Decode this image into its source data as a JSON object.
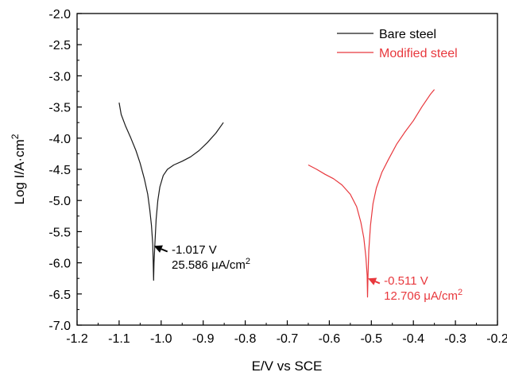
{
  "chart_data": {
    "type": "line",
    "xlabel": "E/V vs SCE",
    "ylabel_main": "Log I/A·cm",
    "ylabel_sup": "2",
    "xlim": [
      -1.2,
      -0.2
    ],
    "ylim": [
      -7.0,
      -2.0
    ],
    "x_ticks": [
      -1.2,
      -1.1,
      -1.0,
      -0.9,
      -0.8,
      -0.7,
      -0.6,
      -0.5,
      -0.4,
      -0.3,
      -0.2
    ],
    "x_tick_labels": [
      "-1.2",
      "-1.1",
      "-1.0",
      "-0.9",
      "-0.8",
      "-0.7",
      "-0.6",
      "-0.5",
      "-0.4",
      "-0.3",
      "-0.2"
    ],
    "y_ticks": [
      -2.0,
      -2.5,
      -3.0,
      -3.5,
      -4.0,
      -4.5,
      -5.0,
      -5.5,
      -6.0,
      -6.5,
      -7.0
    ],
    "y_tick_labels": [
      "-2.0",
      "-2.5",
      "-3.0",
      "-3.5",
      "-4.0",
      "-4.5",
      "-5.0",
      "-5.5",
      "-6.0",
      "-6.5",
      "-7.0"
    ],
    "grid": false,
    "legend_position": "top-right",
    "series": [
      {
        "name": "Bare steel",
        "color": "#1a1a1a",
        "points": [
          [
            -1.1,
            -3.43
          ],
          [
            -1.095,
            -3.62
          ],
          [
            -1.085,
            -3.8
          ],
          [
            -1.072,
            -4.0
          ],
          [
            -1.06,
            -4.2
          ],
          [
            -1.05,
            -4.4
          ],
          [
            -1.04,
            -4.65
          ],
          [
            -1.032,
            -4.9
          ],
          [
            -1.027,
            -5.15
          ],
          [
            -1.023,
            -5.4
          ],
          [
            -1.02,
            -5.7
          ],
          [
            -1.019,
            -5.95
          ],
          [
            -1.018,
            -6.28
          ],
          [
            -1.017,
            -6.0
          ],
          [
            -1.015,
            -5.7
          ],
          [
            -1.012,
            -5.3
          ],
          [
            -1.008,
            -5.0
          ],
          [
            -1.003,
            -4.78
          ],
          [
            -0.995,
            -4.6
          ],
          [
            -0.985,
            -4.5
          ],
          [
            -0.97,
            -4.43
          ],
          [
            -0.95,
            -4.37
          ],
          [
            -0.93,
            -4.3
          ],
          [
            -0.91,
            -4.2
          ],
          [
            -0.89,
            -4.07
          ],
          [
            -0.87,
            -3.92
          ],
          [
            -0.852,
            -3.75
          ]
        ]
      },
      {
        "name": "Modified steel",
        "color": "#e8383d",
        "points": [
          [
            -0.65,
            -4.43
          ],
          [
            -0.63,
            -4.5
          ],
          [
            -0.61,
            -4.58
          ],
          [
            -0.59,
            -4.65
          ],
          [
            -0.57,
            -4.75
          ],
          [
            -0.55,
            -4.9
          ],
          [
            -0.535,
            -5.1
          ],
          [
            -0.525,
            -5.35
          ],
          [
            -0.518,
            -5.6
          ],
          [
            -0.513,
            -5.9
          ],
          [
            -0.51,
            -6.2
          ],
          [
            -0.509,
            -6.55
          ],
          [
            -0.508,
            -6.2
          ],
          [
            -0.506,
            -5.8
          ],
          [
            -0.502,
            -5.4
          ],
          [
            -0.496,
            -5.05
          ],
          [
            -0.488,
            -4.8
          ],
          [
            -0.475,
            -4.55
          ],
          [
            -0.46,
            -4.35
          ],
          [
            -0.44,
            -4.1
          ],
          [
            -0.42,
            -3.9
          ],
          [
            -0.4,
            -3.72
          ],
          [
            -0.38,
            -3.5
          ],
          [
            -0.36,
            -3.3
          ],
          [
            -0.35,
            -3.22
          ]
        ]
      }
    ],
    "annotations": [
      {
        "line1": "-1.017 V",
        "line2_value": "25.586 ",
        "line2_mu": "μ",
        "line2_unit": "A/cm",
        "line2_sup": "2",
        "color": "#000000",
        "arrow_to": [
          -1.017,
          -5.73
        ],
        "arrow_from": [
          -0.985,
          -5.82
        ],
        "text_at": [
          -0.975,
          -5.85
        ]
      },
      {
        "line1": "-0.511 V",
        "line2_value": "12.706 ",
        "line2_mu": "μ",
        "line2_unit": "A/cm",
        "line2_sup": "2",
        "color": "#e8383d",
        "arrow_to": [
          -0.508,
          -6.25
        ],
        "arrow_from": [
          -0.48,
          -6.33
        ],
        "text_at": [
          -0.47,
          -6.35
        ]
      }
    ]
  }
}
